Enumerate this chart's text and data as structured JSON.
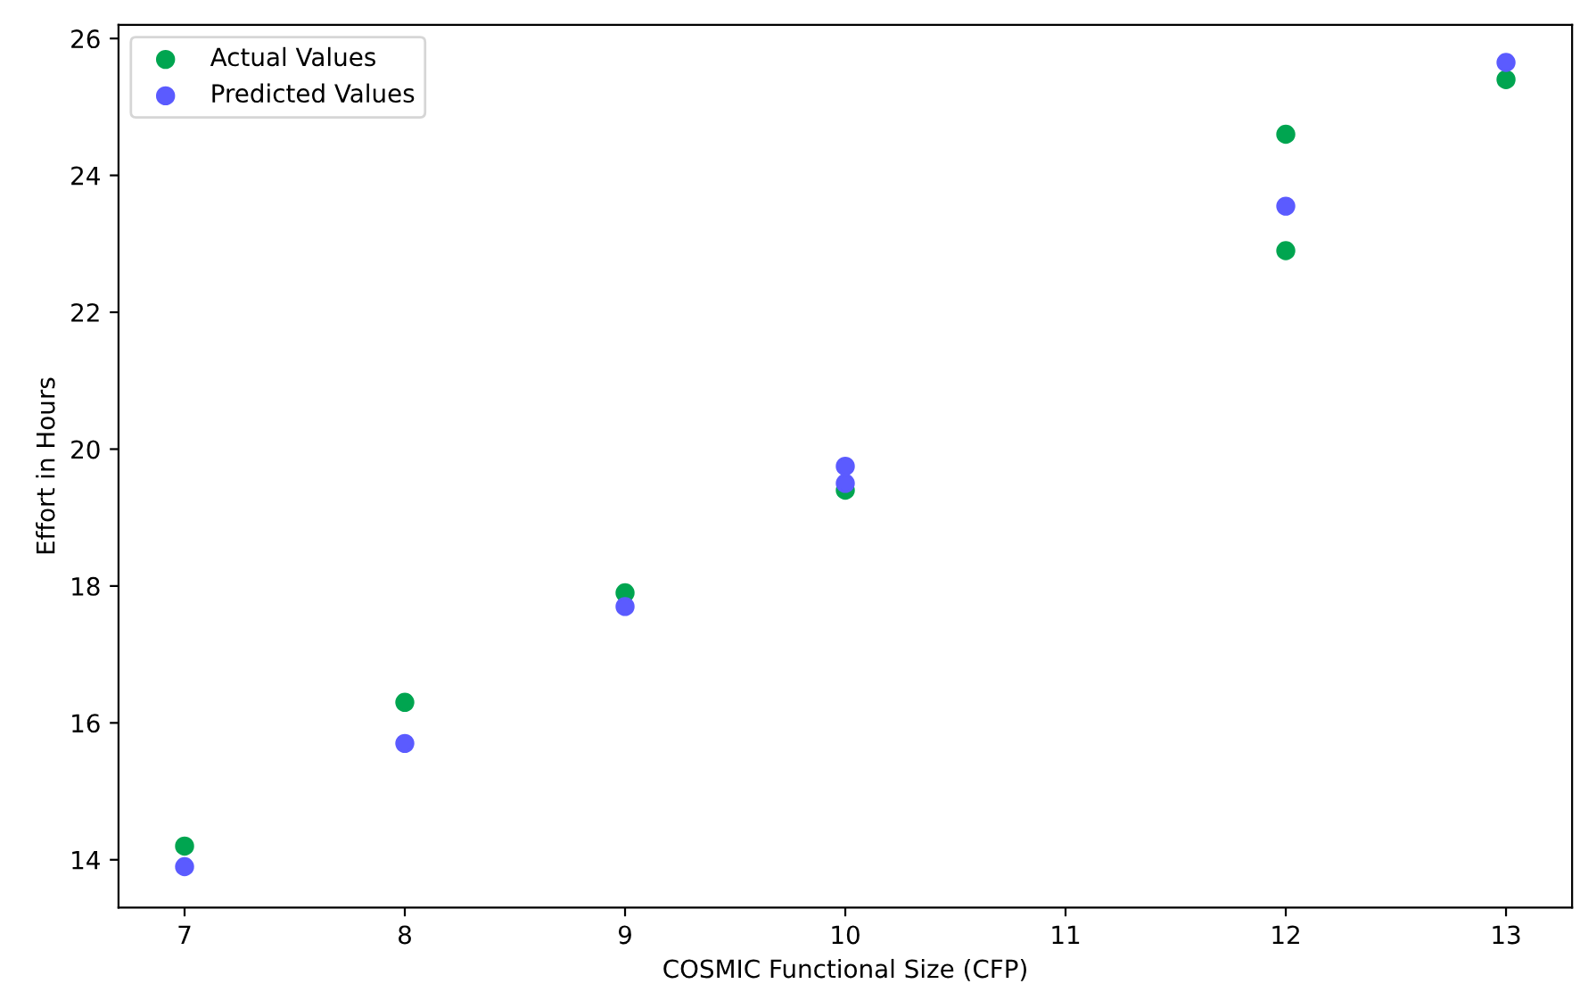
{
  "chart_data": {
    "type": "scatter",
    "xlabel": "COSMIC Functional Size (CFP)",
    "ylabel": "Effort in Hours",
    "series": [
      {
        "name": "Actual Values",
        "color": "#00a550",
        "x": [
          7,
          8,
          9,
          10,
          12,
          12,
          13
        ],
        "values": [
          14.2,
          16.3,
          17.9,
          19.4,
          24.6,
          22.9,
          25.4
        ]
      },
      {
        "name": "Predicted Values",
        "color": "#5b5bff",
        "x": [
          7,
          8,
          9,
          10,
          10,
          12,
          13
        ],
        "values": [
          13.9,
          15.7,
          17.7,
          19.5,
          19.75,
          23.55,
          25.65
        ]
      }
    ],
    "xlim": [
      6.7,
      13.3
    ],
    "xticks": [
      7,
      8,
      9,
      10,
      11,
      12,
      13
    ],
    "ylim": [
      13.3,
      26.2
    ],
    "yticks": [
      14,
      16,
      18,
      20,
      22,
      24,
      26
    ],
    "legend": "top left",
    "marker": "circle",
    "grid": false
  }
}
